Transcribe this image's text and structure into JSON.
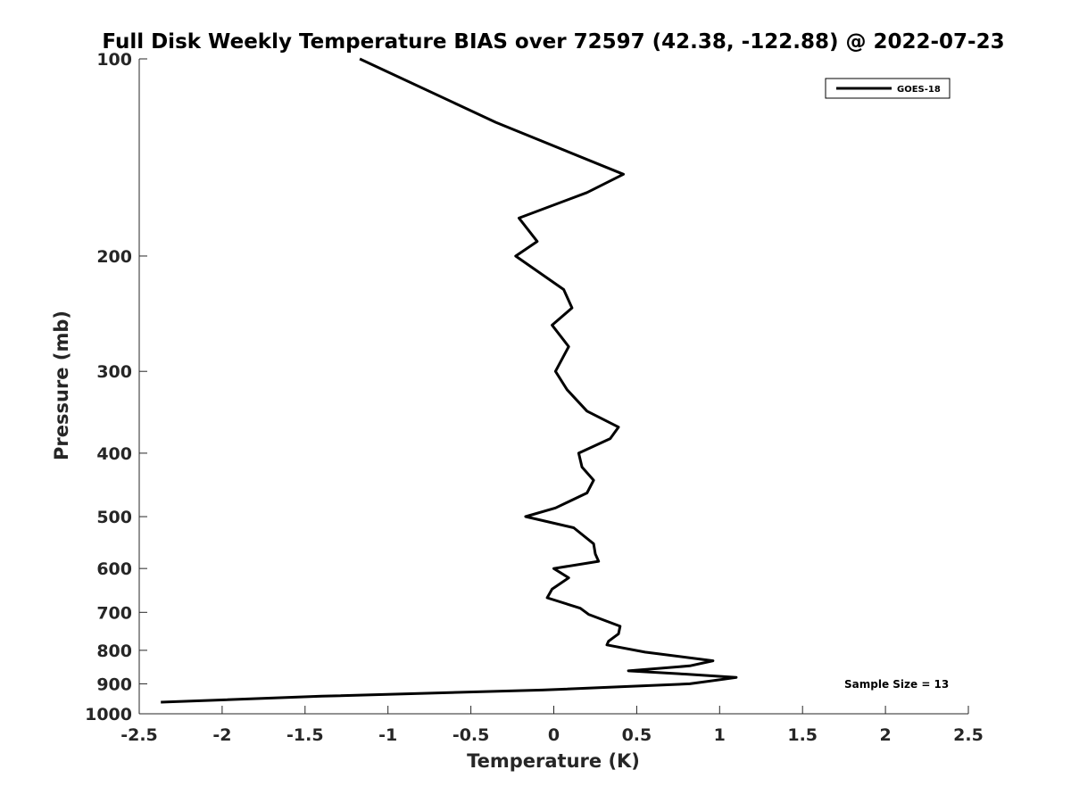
{
  "chart_data": {
    "type": "line",
    "title": "Full Disk Weekly Temperature BIAS over 72597 (42.38, -122.88) @ 2022-07-23",
    "xlabel": "Temperature (K)",
    "ylabel": "Pressure (mb)",
    "xlim": [
      -2.5,
      2.5
    ],
    "ylim": [
      100,
      1000
    ],
    "y_scale": "log",
    "y_reversed": true,
    "x_ticks": [
      "-2.5",
      "-2",
      "-1.5",
      "-1",
      "-0.5",
      "0",
      "0.5",
      "1",
      "1.5",
      "2",
      "2.5"
    ],
    "x_tick_values": [
      -2.5,
      -2,
      -1.5,
      -1,
      -0.5,
      0,
      0.5,
      1,
      1.5,
      2,
      2.5
    ],
    "y_ticks": [
      "100",
      "200",
      "300",
      "400",
      "500",
      "600",
      "700",
      "800",
      "900",
      "1000"
    ],
    "y_tick_values": [
      100,
      200,
      300,
      400,
      500,
      600,
      700,
      800,
      900,
      1000
    ],
    "grid": false,
    "legend_position": "top-right",
    "line_color": "#000000",
    "series": [
      {
        "name": "GOES-18",
        "points": [
          {
            "x": -1.17,
            "p": 100
          },
          {
            "x": -0.35,
            "p": 125
          },
          {
            "x": 0.42,
            "p": 150
          },
          {
            "x": 0.2,
            "p": 160
          },
          {
            "x": -0.21,
            "p": 175
          },
          {
            "x": -0.1,
            "p": 190
          },
          {
            "x": -0.23,
            "p": 200
          },
          {
            "x": 0.06,
            "p": 225
          },
          {
            "x": 0.11,
            "p": 240
          },
          {
            "x": -0.01,
            "p": 255
          },
          {
            "x": 0.09,
            "p": 275
          },
          {
            "x": 0.01,
            "p": 300
          },
          {
            "x": 0.08,
            "p": 320
          },
          {
            "x": 0.2,
            "p": 345
          },
          {
            "x": 0.39,
            "p": 365
          },
          {
            "x": 0.34,
            "p": 380
          },
          {
            "x": 0.15,
            "p": 400
          },
          {
            "x": 0.17,
            "p": 420
          },
          {
            "x": 0.24,
            "p": 440
          },
          {
            "x": 0.2,
            "p": 460
          },
          {
            "x": 0.01,
            "p": 485
          },
          {
            "x": -0.17,
            "p": 500
          },
          {
            "x": 0.12,
            "p": 520
          },
          {
            "x": 0.24,
            "p": 550
          },
          {
            "x": 0.25,
            "p": 570
          },
          {
            "x": 0.27,
            "p": 585
          },
          {
            "x": 0.0,
            "p": 600
          },
          {
            "x": 0.09,
            "p": 620
          },
          {
            "x": -0.01,
            "p": 645
          },
          {
            "x": -0.04,
            "p": 665
          },
          {
            "x": 0.16,
            "p": 690
          },
          {
            "x": 0.21,
            "p": 705
          },
          {
            "x": 0.4,
            "p": 735
          },
          {
            "x": 0.39,
            "p": 755
          },
          {
            "x": 0.33,
            "p": 775
          },
          {
            "x": 0.32,
            "p": 785
          },
          {
            "x": 0.55,
            "p": 805
          },
          {
            "x": 0.96,
            "p": 830
          },
          {
            "x": 0.82,
            "p": 845
          },
          {
            "x": 0.45,
            "p": 860
          },
          {
            "x": 0.8,
            "p": 870
          },
          {
            "x": 1.1,
            "p": 880
          },
          {
            "x": 0.82,
            "p": 900
          },
          {
            "x": -0.07,
            "p": 920
          },
          {
            "x": -1.4,
            "p": 940
          },
          {
            "x": -2.37,
            "p": 960
          }
        ]
      }
    ],
    "annotation": "Sample Size = 13"
  }
}
